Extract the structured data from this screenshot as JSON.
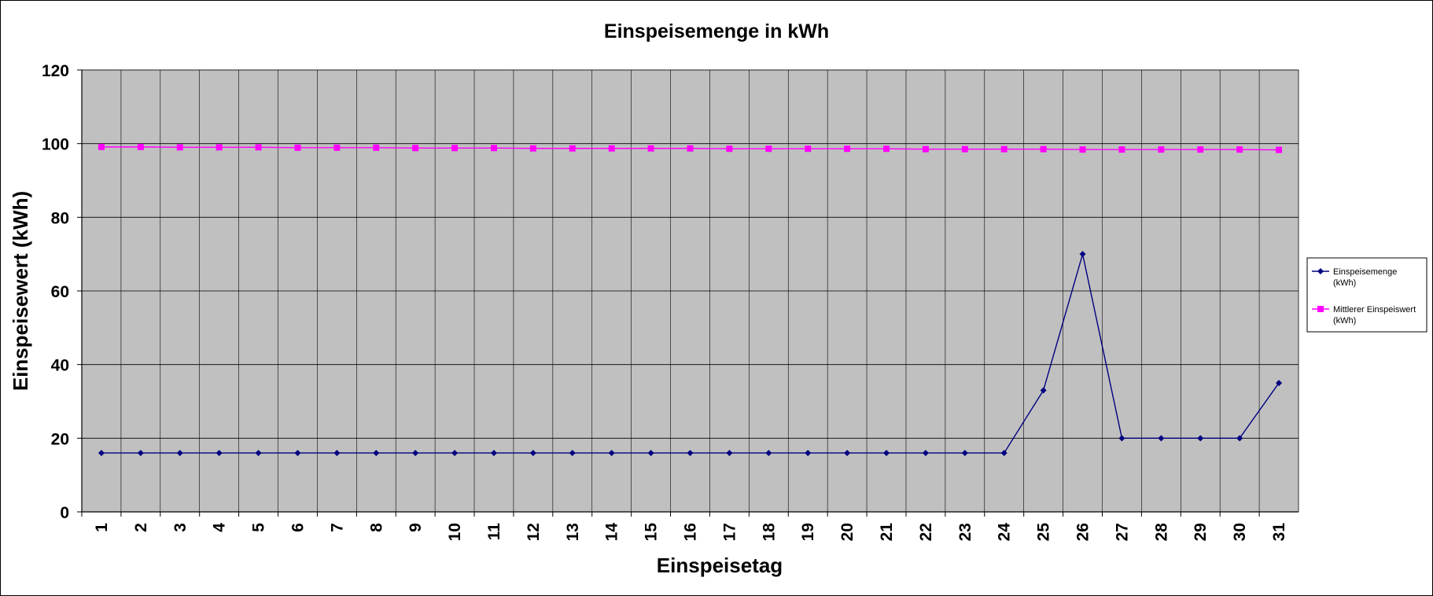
{
  "chart_data": {
    "type": "line",
    "title": "Einspeisemenge in kWh",
    "xlabel": "Einspeisetag",
    "ylabel": "Einspeisewert  (kWh)",
    "ylim": [
      0,
      120
    ],
    "yticks": [
      "0",
      "20",
      "40",
      "60",
      "80",
      "100",
      "120"
    ],
    "categories": [
      "1",
      "2",
      "3",
      "4",
      "5",
      "6",
      "7",
      "8",
      "9",
      "10",
      "11",
      "12",
      "13",
      "14",
      "15",
      "16",
      "17",
      "18",
      "19",
      "20",
      "21",
      "22",
      "23",
      "24",
      "25",
      "26",
      "27",
      "28",
      "29",
      "30",
      "31"
    ],
    "grid": true,
    "legend_position": "right",
    "plot_background": "#c0c0c0",
    "series": [
      {
        "legend_line1": "Einspeisemenge",
        "legend_line2": "(kWh)",
        "color": "#000080",
        "marker": "diamond",
        "values": [
          16,
          16,
          16,
          16,
          16,
          16,
          16,
          16,
          16,
          16,
          16,
          16,
          16,
          16,
          16,
          16,
          16,
          16,
          16,
          16,
          16,
          16,
          16,
          16,
          33,
          70,
          20,
          20,
          20,
          20,
          35
        ]
      },
      {
        "legend_line1": "Mittlerer Einspeiswert",
        "legend_line2": "(kWh)",
        "color": "#ff00ff",
        "marker": "square",
        "values": [
          99.1,
          99.1,
          99.0,
          99.0,
          99.0,
          98.9,
          98.9,
          98.9,
          98.8,
          98.8,
          98.8,
          98.7,
          98.7,
          98.7,
          98.7,
          98.7,
          98.6,
          98.6,
          98.6,
          98.6,
          98.6,
          98.5,
          98.5,
          98.5,
          98.5,
          98.4,
          98.4,
          98.4,
          98.4,
          98.4,
          98.3
        ]
      }
    ]
  }
}
